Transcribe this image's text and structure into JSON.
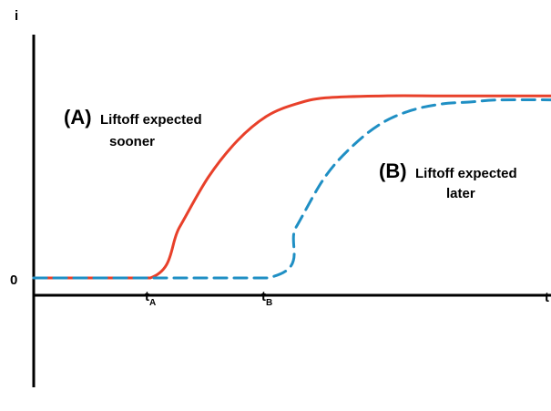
{
  "chart_data": {
    "type": "line",
    "ylabel": "i",
    "xlabel": "t",
    "y_zero_label": "0",
    "x_ticks": [
      {
        "main": "t",
        "sub": "A",
        "x": 2
      },
      {
        "main": "t",
        "sub": "B",
        "x": 4
      }
    ],
    "xlim": [
      0,
      9.5
    ],
    "ylim": [
      -1,
      1.2
    ],
    "grid": false,
    "legend": "none",
    "series": [
      {
        "key": "A",
        "color": "#e8402a",
        "style": "solid",
        "x": [
          0,
          2,
          2.5,
          3,
          3.5,
          4,
          4.5,
          5,
          6,
          7,
          8,
          9.5
        ],
        "y": [
          0.0,
          0.0,
          0.25,
          0.5,
          0.68,
          0.8,
          0.86,
          0.89,
          0.9,
          0.9,
          0.9,
          0.9
        ]
      },
      {
        "key": "B",
        "color": "#1f8fc4",
        "style": "dashed",
        "x": [
          0,
          4,
          4.5,
          5,
          5.5,
          6,
          6.5,
          7,
          7.5,
          8,
          9,
          9.5
        ],
        "y": [
          0.0,
          0.0,
          0.25,
          0.5,
          0.66,
          0.77,
          0.83,
          0.86,
          0.87,
          0.88,
          0.88,
          0.88
        ]
      }
    ],
    "annotations": [
      {
        "key": "A",
        "letter": "(A)",
        "line1": "Liftoff expected",
        "line2": "sooner",
        "color": "#e8402a"
      },
      {
        "key": "B",
        "letter": "(B)",
        "line1": "Liftoff expected",
        "line2": "later",
        "color": "#1f8fc4"
      }
    ]
  }
}
